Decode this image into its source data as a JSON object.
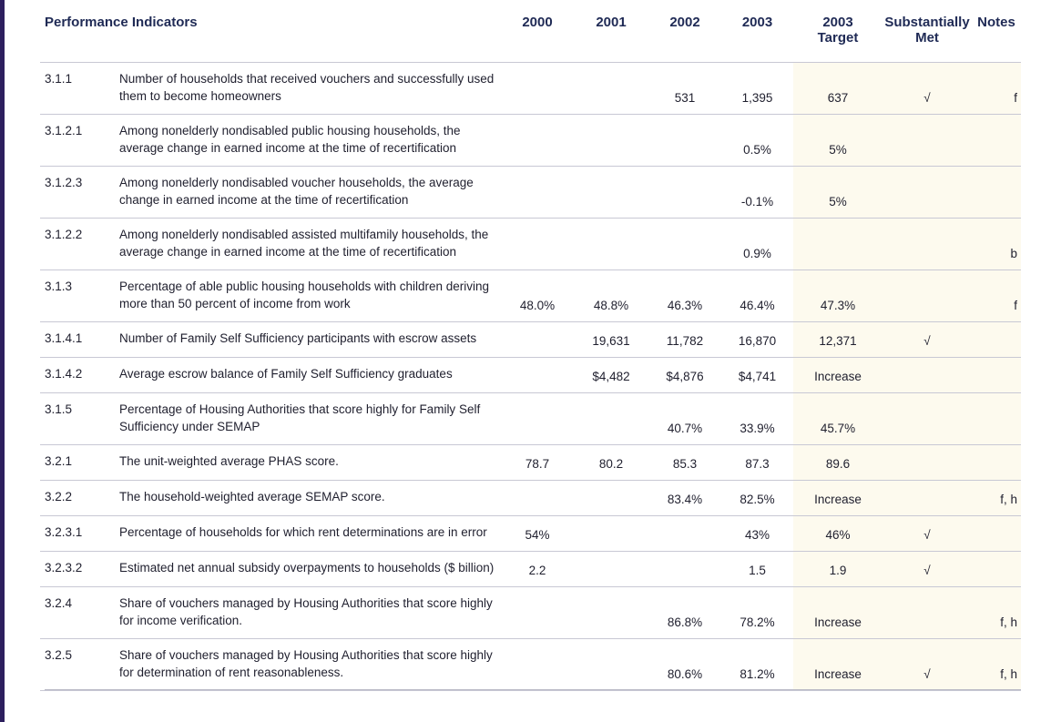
{
  "table": {
    "headers": [
      {
        "key": "indicator",
        "label": "Performance Indicators"
      },
      {
        "key": "y2000",
        "label": "2000"
      },
      {
        "key": "y2001",
        "label": "2001"
      },
      {
        "key": "y2002",
        "label": "2002"
      },
      {
        "key": "y2003",
        "label": "2003"
      },
      {
        "key": "target",
        "label": "2003\nTarget"
      },
      {
        "key": "sub",
        "label": "Substantially\nMet"
      },
      {
        "key": "notes",
        "label": "Notes"
      }
    ],
    "rows": [
      {
        "id": "3.1.1",
        "desc": "Number of households that received vouchers and successfully used them to become homeowners",
        "y2000": "",
        "y2001": "",
        "y2002": "531",
        "y2003": "1,395",
        "target": "637",
        "sub": "√",
        "notes": "f"
      },
      {
        "id": "3.1.2.1",
        "desc": "Among nonelderly nondisabled public housing households, the average change in earned income at the time of recertification",
        "y2000": "",
        "y2001": "",
        "y2002": "",
        "y2003": "0.5%",
        "target": "5%",
        "sub": "",
        "notes": ""
      },
      {
        "id": "3.1.2.3",
        "desc": "Among nonelderly nondisabled voucher households, the average change in earned income at the time of recertification",
        "y2000": "",
        "y2001": "",
        "y2002": "",
        "y2003": "-0.1%",
        "target": "5%",
        "sub": "",
        "notes": ""
      },
      {
        "id": "3.1.2.2",
        "desc": "Among nonelderly nondisabled assisted multifamily households, the average change in earned income at the time of recertification",
        "y2000": "",
        "y2001": "",
        "y2002": "",
        "y2003": "0.9%",
        "target": "",
        "sub": "",
        "notes": "b"
      },
      {
        "id": "3.1.3",
        "desc": "Percentage of able public housing households with children deriving more than 50 percent of income from work",
        "y2000": "48.0%",
        "y2001": "48.8%",
        "y2002": "46.3%",
        "y2003": "46.4%",
        "target": "47.3%",
        "sub": "",
        "notes": "f"
      },
      {
        "id": "3.1.4.1",
        "desc": "Number of Family Self Sufficiency participants with escrow assets",
        "y2000": "",
        "y2001": "19,631",
        "y2002": "11,782",
        "y2003": "16,870",
        "target": "12,371",
        "sub": "√",
        "notes": ""
      },
      {
        "id": "3.1.4.2",
        "desc": "Average escrow balance of Family Self Sufficiency graduates",
        "y2000": "",
        "y2001": "$4,482",
        "y2002": "$4,876",
        "y2003": "$4,741",
        "target": "Increase",
        "sub": "",
        "notes": ""
      },
      {
        "id": "3.1.5",
        "desc": "Percentage of Housing Authorities that score highly for Family Self Sufficiency under SEMAP",
        "y2000": "",
        "y2001": "",
        "y2002": "40.7%",
        "y2003": "33.9%",
        "target": "45.7%",
        "sub": "",
        "notes": ""
      },
      {
        "id": "3.2.1",
        "desc": "The unit-weighted average PHAS score.",
        "y2000": "78.7",
        "y2001": "80.2",
        "y2002": "85.3",
        "y2003": "87.3",
        "target": "89.6",
        "sub": "",
        "notes": ""
      },
      {
        "id": "3.2.2",
        "desc": "The household-weighted average SEMAP score.",
        "y2000": "",
        "y2001": "",
        "y2002": "83.4%",
        "y2003": "82.5%",
        "target": "Increase",
        "sub": "",
        "notes": "f, h"
      },
      {
        "id": "3.2.3.1",
        "desc": "Percentage of households for which rent determinations are in error",
        "y2000": "54%",
        "y2001": "",
        "y2002": "",
        "y2003": "43%",
        "target": "46%",
        "sub": "√",
        "notes": ""
      },
      {
        "id": "3.2.3.2",
        "desc": "Estimated net annual subsidy overpayments to households ($ billion)",
        "y2000": "2.2",
        "y2001": "",
        "y2002": "",
        "y2003": "1.5",
        "target": "1.9",
        "sub": "√",
        "notes": ""
      },
      {
        "id": "3.2.4",
        "desc": "Share of vouchers managed by Housing Authorities that score highly for income verification.",
        "y2000": "",
        "y2001": "",
        "y2002": "86.8%",
        "y2003": "78.2%",
        "target": "Increase",
        "sub": "",
        "notes": "f, h"
      },
      {
        "id": "3.2.5",
        "desc": "Share of vouchers managed by Housing Authorities that score highly for determination of rent reasonableness.",
        "y2000": "",
        "y2001": "",
        "y2002": "80.6%",
        "y2003": "81.2%",
        "target": "Increase",
        "sub": "√",
        "notes": "f, h"
      }
    ]
  }
}
